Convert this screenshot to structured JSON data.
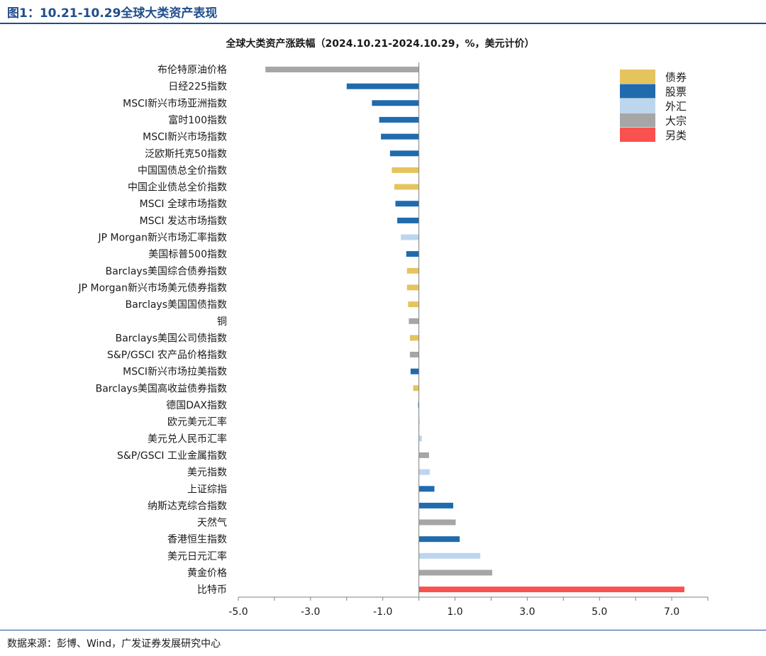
{
  "figure_title": "图1：10.21-10.29全球大类资产表现",
  "source": "数据来源：彭博、Wind，广发证券发展研究中心",
  "chart_data": {
    "type": "bar",
    "orientation": "horizontal",
    "title": "全球大类资产涨跌幅（2024.10.21-2024.10.29，%，美元计价）",
    "xlabel": "",
    "ylabel": "",
    "xlim": [
      -5.0,
      8.0
    ],
    "xticks": [
      -5.0,
      -3.0,
      -1.0,
      1.0,
      3.0,
      5.0,
      7.0
    ],
    "xtick_labels": [
      "-5.0",
      "-3.0",
      "-1.0",
      "1.0",
      "3.0",
      "5.0",
      "7.0"
    ],
    "grid": false,
    "legend_position": "top-right",
    "legend": [
      {
        "name": "债券",
        "color": "#E5C45E"
      },
      {
        "name": "股票",
        "color": "#1F6BAE"
      },
      {
        "name": "外汇",
        "color": "#BCD6EE"
      },
      {
        "name": "大宗",
        "color": "#A6A6A6"
      },
      {
        "name": "另类",
        "color": "#F9514F"
      }
    ],
    "bars": [
      {
        "label": "布伦特原油价格",
        "value": -4.25,
        "category": "大宗"
      },
      {
        "label": "日经225指数",
        "value": -2.0,
        "category": "股票"
      },
      {
        "label": "MSCI新兴市场亚洲指数",
        "value": -1.3,
        "category": "股票"
      },
      {
        "label": "富时100指数",
        "value": -1.1,
        "category": "股票"
      },
      {
        "label": "MSCI新兴市场指数",
        "value": -1.05,
        "category": "股票"
      },
      {
        "label": "泛欧斯托克50指数",
        "value": -0.8,
        "category": "股票"
      },
      {
        "label": "中国国债总全价指数",
        "value": -0.75,
        "category": "债券"
      },
      {
        "label": "中国企业债总全价指数",
        "value": -0.68,
        "category": "债券"
      },
      {
        "label": "MSCI 全球市场指数",
        "value": -0.65,
        "category": "股票"
      },
      {
        "label": "MSCI 发达市场指数",
        "value": -0.6,
        "category": "股票"
      },
      {
        "label": "JP Morgan新兴市场汇率指数",
        "value": -0.5,
        "category": "外汇"
      },
      {
        "label": "美国标普500指数",
        "value": -0.35,
        "category": "股票"
      },
      {
        "label": "Barclays美国综合债券指数",
        "value": -0.33,
        "category": "债券"
      },
      {
        "label": "JP Morgan新兴市场美元债券指数",
        "value": -0.33,
        "category": "债券"
      },
      {
        "label": "Barclays美国国债指数",
        "value": -0.3,
        "category": "债券"
      },
      {
        "label": "铜",
        "value": -0.28,
        "category": "大宗"
      },
      {
        "label": "Barclays美国公司债指数",
        "value": -0.25,
        "category": "债券"
      },
      {
        "label": "S&P/GSCI 农产品价格指数",
        "value": -0.25,
        "category": "大宗"
      },
      {
        "label": "MSCI新兴市场拉美指数",
        "value": -0.23,
        "category": "股票"
      },
      {
        "label": "Barclays美国高收益债券指数",
        "value": -0.16,
        "category": "债券"
      },
      {
        "label": "德国DAX指数",
        "value": -0.02,
        "category": "股票"
      },
      {
        "label": "欧元美元汇率",
        "value": 0.02,
        "category": "外汇"
      },
      {
        "label": "美元兑人民币汇率",
        "value": 0.08,
        "category": "外汇"
      },
      {
        "label": "S&P/GSCI 工业金属指数",
        "value": 0.28,
        "category": "大宗"
      },
      {
        "label": "美元指数",
        "value": 0.3,
        "category": "外汇"
      },
      {
        "label": "上证综指",
        "value": 0.43,
        "category": "股票"
      },
      {
        "label": "纳斯达克综合指数",
        "value": 0.95,
        "category": "股票"
      },
      {
        "label": "天然气",
        "value": 1.02,
        "category": "大宗"
      },
      {
        "label": "香港恒生指数",
        "value": 1.13,
        "category": "股票"
      },
      {
        "label": "美元日元汇率",
        "value": 1.7,
        "category": "外汇"
      },
      {
        "label": "黄金价格",
        "value": 2.03,
        "category": "大宗"
      },
      {
        "label": "比特币",
        "value": 7.35,
        "category": "另类"
      }
    ]
  }
}
